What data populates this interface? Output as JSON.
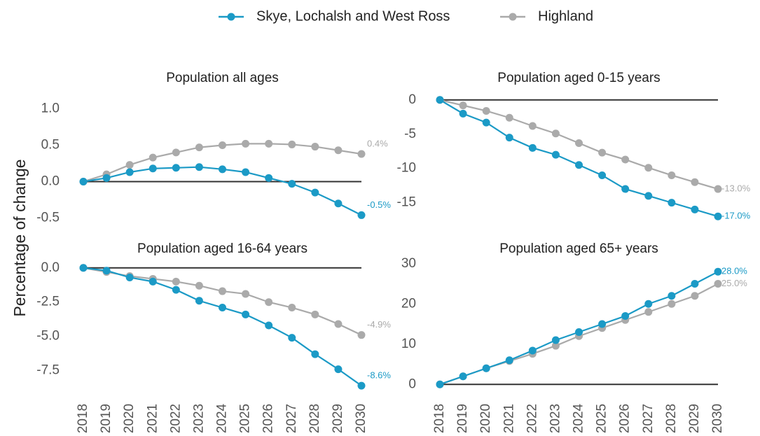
{
  "chart_data": [
    {
      "type": "line",
      "title": "Population all ages",
      "ylabel": "Percentage of change",
      "ylim": [
        -0.6,
        1.1
      ],
      "yticks": [
        -0.5,
        {
          "value": 0,
          "label": "0.0"
        },
        0.5,
        {
          "value": 1,
          "label": "1.0"
        }
      ],
      "series": [
        {
          "name": "Skye, Lochalsh and West Ross",
          "color": "#1b9ac6",
          "values": [
            0,
            0.05,
            0.13,
            0.18,
            0.19,
            0.2,
            0.17,
            0.13,
            0.05,
            -0.03,
            -0.15,
            -0.3,
            -0.46
          ],
          "value_labels": [
            null,
            null,
            null,
            null,
            null,
            null,
            null,
            null,
            null,
            null,
            null,
            null,
            "-0.5%"
          ]
        },
        {
          "name": "Highland",
          "color": "#aaaaaa",
          "values": [
            0,
            0.1,
            0.23,
            0.33,
            0.4,
            0.47,
            0.5,
            0.52,
            0.52,
            0.51,
            0.48,
            0.43,
            0.38
          ],
          "value_labels": [
            null,
            null,
            null,
            null,
            null,
            null,
            null,
            null,
            null,
            null,
            null,
            null,
            "0.4%"
          ]
        }
      ]
    },
    {
      "type": "line",
      "title": "Population aged 0-15 years",
      "ylim": [
        -18,
        1
      ],
      "yticks": [
        -15,
        -10,
        -5,
        0
      ],
      "series": [
        {
          "name": "Skye, Lochalsh and West Ross",
          "color": "#1b9ac6",
          "values": [
            0,
            -2,
            -3.3,
            -5.5,
            -7,
            -8,
            -9.5,
            -11,
            -13,
            -14,
            -15,
            -16,
            -17
          ],
          "value_labels": [
            null,
            null,
            null,
            null,
            null,
            null,
            null,
            null,
            null,
            null,
            null,
            null,
            "-17.0%"
          ]
        },
        {
          "name": "Highland",
          "color": "#aaaaaa",
          "values": [
            0,
            -0.8,
            -1.6,
            -2.6,
            -3.8,
            -4.9,
            -6.3,
            -7.7,
            -8.7,
            -9.9,
            -11,
            -12,
            -13
          ],
          "value_labels": [
            null,
            null,
            null,
            null,
            null,
            null,
            null,
            null,
            null,
            null,
            null,
            null,
            "-13.0%"
          ]
        }
      ]
    },
    {
      "type": "line",
      "title": "Population aged 16-64 years",
      "categories": [
        "2018",
        "2019",
        "2020",
        "2021",
        "2022",
        "2023",
        "2024",
        "2025",
        "2026",
        "2027",
        "2028",
        "2029",
        "2030"
      ],
      "ylim": [
        -8.8,
        0.5
      ],
      "yticks": [
        -7.5,
        {
          "value": -5,
          "label": "-5.0"
        },
        -2.5,
        {
          "value": 0,
          "label": "0.0"
        }
      ],
      "series": [
        {
          "name": "Skye, Lochalsh and West Ross",
          "color": "#1b9ac6",
          "values": [
            0,
            -0.2,
            -0.7,
            -1,
            -1.6,
            -2.4,
            -2.9,
            -3.4,
            -4.2,
            -5.1,
            -6.3,
            -7.4,
            -8.6
          ],
          "value_labels": [
            null,
            null,
            null,
            null,
            null,
            null,
            null,
            null,
            null,
            null,
            null,
            null,
            "-8.6%"
          ]
        },
        {
          "name": "Highland",
          "color": "#aaaaaa",
          "values": [
            0,
            -0.3,
            -0.6,
            -0.8,
            -1,
            -1.3,
            -1.7,
            -1.9,
            -2.5,
            -2.9,
            -3.4,
            -4.1,
            -4.9
          ],
          "value_labels": [
            null,
            null,
            null,
            null,
            null,
            null,
            null,
            null,
            null,
            null,
            null,
            null,
            "-4.9%"
          ]
        }
      ]
    },
    {
      "type": "line",
      "title": "Population aged 65+ years",
      "categories": [
        "2018",
        "2019",
        "2020",
        "2021",
        "2022",
        "2023",
        "2024",
        "2025",
        "2026",
        "2027",
        "2028",
        "2029",
        "2030"
      ],
      "ylim": [
        -1,
        31
      ],
      "yticks": [
        0,
        10,
        20,
        30
      ],
      "series": [
        {
          "name": "Skye, Lochalsh and West Ross",
          "color": "#1b9ac6",
          "values": [
            0,
            2,
            4,
            6,
            8.4,
            11,
            13,
            15,
            17,
            20,
            22,
            25,
            28
          ],
          "value_labels": [
            null,
            null,
            null,
            null,
            null,
            null,
            null,
            null,
            null,
            null,
            null,
            null,
            "28.0%"
          ]
        },
        {
          "name": "Highland",
          "color": "#aaaaaa",
          "values": [
            0,
            2,
            4,
            5.8,
            7.6,
            9.6,
            12,
            14,
            16,
            18,
            20,
            22,
            25
          ],
          "value_labels": [
            null,
            null,
            null,
            null,
            null,
            null,
            null,
            null,
            null,
            null,
            null,
            null,
            "25.0%"
          ]
        }
      ]
    }
  ]
}
